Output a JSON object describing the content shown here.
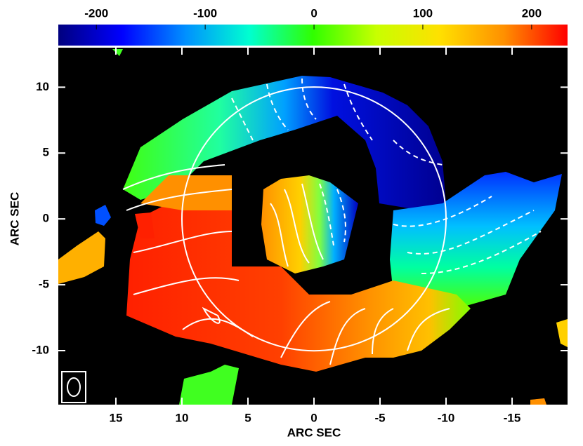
{
  "chart_data": {
    "type": "image",
    "x_label": "ARC SEC",
    "y_label": "ARC SEC",
    "xlim": [
      19.36,
      -19.2
    ],
    "ylim": [
      -14.1,
      13
    ],
    "xticks": [
      15,
      10,
      5,
      0,
      -5,
      -10,
      -15
    ],
    "yticks": [
      10,
      5,
      0,
      -5,
      -10
    ],
    "circle": {
      "center": [
        0,
        0
      ],
      "radius": 10
    },
    "colorbar": {
      "lim": [
        -235,
        233
      ],
      "ticks": [
        -200,
        -100,
        0,
        100,
        200
      ],
      "colors": [
        "#00007f",
        "#0000ff",
        "#0090ff",
        "#00ffd0",
        "#30ff00",
        "#c8ff00",
        "#ffe000",
        "#ff9000",
        "#ff0000"
      ]
    }
  }
}
